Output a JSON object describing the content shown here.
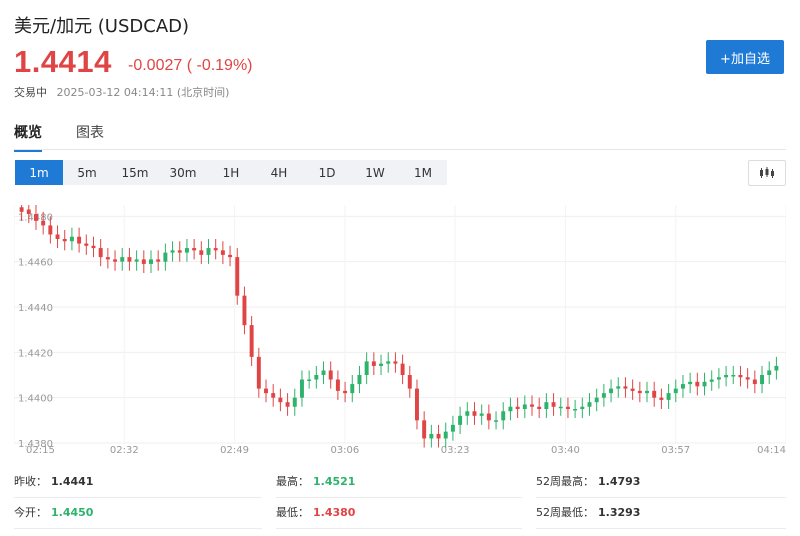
{
  "header": {
    "title": "美元/加元 (USDCAD)",
    "price": "1.4414",
    "change": "-0.0027 ( -0.19%)",
    "status_label": "交易中",
    "timestamp": "2025-03-12 04:14:11 (北京时间)",
    "add_button": "+加自选"
  },
  "tabs": [
    "概览",
    "图表"
  ],
  "periods": [
    "1m",
    "5m",
    "15m",
    "30m",
    "1H",
    "4H",
    "1D",
    "1W",
    "1M"
  ],
  "active_period": "1m",
  "colors": {
    "up": "#2db36b",
    "down": "#e04545",
    "accent": "#1f7ad6"
  },
  "chart_data": {
    "type": "candlestick",
    "y_ticks": [
      "1.4380",
      "1.4400",
      "1.4420",
      "1.4440",
      "1.4460",
      "1.4480"
    ],
    "x_ticks": [
      "02:15",
      "02:32",
      "02:49",
      "03:06",
      "03:23",
      "03:40",
      "03:57",
      "04:14"
    ],
    "ylim": [
      1.438,
      1.4485
    ],
    "grid": true,
    "candles_close": [
      1.4482,
      1.4481,
      1.4478,
      1.4476,
      1.4472,
      1.447,
      1.4469,
      1.4471,
      1.4468,
      1.4467,
      1.4466,
      1.4462,
      1.4461,
      1.446,
      1.4462,
      1.446,
      1.4461,
      1.4459,
      1.4461,
      1.446,
      1.4464,
      1.4465,
      1.4464,
      1.4466,
      1.4465,
      1.4463,
      1.4466,
      1.4465,
      1.4463,
      1.4462,
      1.4445,
      1.4432,
      1.4418,
      1.4404,
      1.4402,
      1.44,
      1.4398,
      1.4396,
      1.44,
      1.4408,
      1.4408,
      1.441,
      1.4412,
      1.4408,
      1.4403,
      1.4402,
      1.4406,
      1.441,
      1.4416,
      1.4414,
      1.4415,
      1.4416,
      1.4415,
      1.441,
      1.4404,
      1.439,
      1.4382,
      1.4384,
      1.4382,
      1.4385,
      1.4388,
      1.4392,
      1.4394,
      1.4392,
      1.4393,
      1.439,
      1.439,
      1.4394,
      1.4396,
      1.4395,
      1.4397,
      1.4396,
      1.4395,
      1.4398,
      1.4396,
      1.4396,
      1.4395,
      1.4395,
      1.4396,
      1.4398,
      1.44,
      1.4402,
      1.4404,
      1.4405,
      1.4404,
      1.4403,
      1.4402,
      1.4403,
      1.44,
      1.4399,
      1.4402,
      1.4404,
      1.4406,
      1.4407,
      1.4405,
      1.4407,
      1.4408,
      1.4409,
      1.441,
      1.441,
      1.4409,
      1.4408,
      1.4406,
      1.441,
      1.4412,
      1.4414
    ],
    "candles_open": [
      1.4484,
      1.4483,
      1.4481,
      1.4478,
      1.4476,
      1.4472,
      1.447,
      1.4469,
      1.4471,
      1.4468,
      1.4467,
      1.4466,
      1.4462,
      1.4461,
      1.446,
      1.4462,
      1.446,
      1.4461,
      1.4459,
      1.4461,
      1.446,
      1.4464,
      1.4465,
      1.4464,
      1.4466,
      1.4465,
      1.4463,
      1.4466,
      1.4465,
      1.4463,
      1.4462,
      1.4445,
      1.4432,
      1.4418,
      1.4404,
      1.4402,
      1.44,
      1.4398,
      1.4396,
      1.44,
      1.4408,
      1.4408,
      1.441,
      1.4412,
      1.4408,
      1.4403,
      1.4402,
      1.4406,
      1.441,
      1.4416,
      1.4414,
      1.4415,
      1.4416,
      1.4415,
      1.441,
      1.4404,
      1.439,
      1.4382,
      1.4384,
      1.4382,
      1.4385,
      1.4388,
      1.4392,
      1.4394,
      1.4392,
      1.4393,
      1.439,
      1.439,
      1.4394,
      1.4396,
      1.4395,
      1.4397,
      1.4396,
      1.4395,
      1.4398,
      1.4396,
      1.4396,
      1.4395,
      1.4395,
      1.4396,
      1.4398,
      1.44,
      1.4402,
      1.4404,
      1.4405,
      1.4404,
      1.4403,
      1.4402,
      1.4403,
      1.44,
      1.4399,
      1.4402,
      1.4404,
      1.4406,
      1.4407,
      1.4405,
      1.4407,
      1.4408,
      1.4409,
      1.441,
      1.441,
      1.4409,
      1.4408,
      1.4406,
      1.441,
      1.4412
    ]
  },
  "stats": {
    "prev_close_label": "昨收：",
    "prev_close": "1.4441",
    "high_label": "最高：",
    "high": "1.4521",
    "high52_label": "52周最高：",
    "high52": "1.4793",
    "open_label": "今开：",
    "open": "1.4450",
    "low_label": "最低：",
    "low": "1.4380",
    "low52_label": "52周最低：",
    "low52": "1.3293"
  }
}
